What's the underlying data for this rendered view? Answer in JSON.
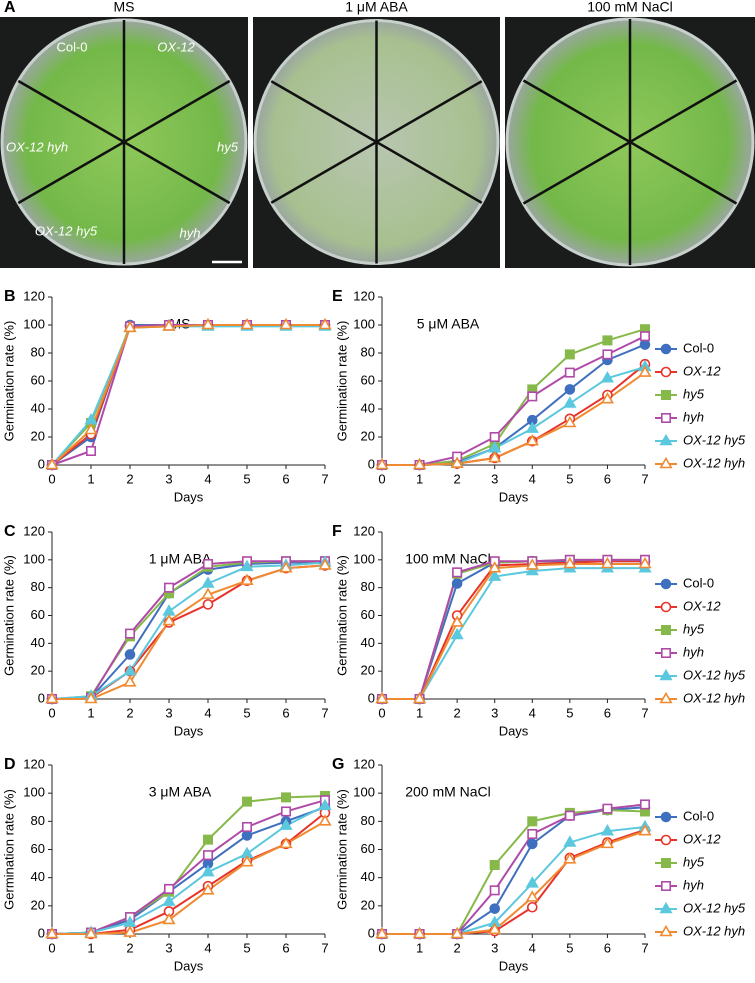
{
  "photo_panel": {
    "panel": "A",
    "titles": [
      "MS",
      "1 μM ABA",
      "100 mM NaCl"
    ],
    "labels": [
      "Col-0",
      "OX-12",
      "hy5",
      "hyh",
      "OX-12 hy5",
      "OX-12 hyh"
    ]
  },
  "chart_data": [
    {
      "type": "line",
      "panel": "B",
      "title": "MS",
      "xlabel": "Days",
      "ylabel": "Germination rate (%)",
      "legend": false,
      "x": [
        0,
        1,
        2,
        3,
        4,
        5,
        6,
        7
      ],
      "xlim": [
        0,
        7
      ],
      "xticks": [
        0,
        1,
        2,
        3,
        4,
        5,
        6,
        7
      ],
      "ylim": [
        0,
        120
      ],
      "yticks": [
        0,
        20,
        40,
        60,
        80,
        100,
        120
      ],
      "series": [
        {
          "name": "Col-0",
          "color": "#3f6fbf",
          "marker": "circle",
          "filled": true,
          "italic": false,
          "values": [
            0,
            20,
            100,
            100,
            100,
            100,
            100,
            100
          ]
        },
        {
          "name": "OX-12",
          "color": "#e8332a",
          "marker": "circle",
          "filled": false,
          "italic": true,
          "values": [
            0,
            22,
            99,
            100,
            100,
            100,
            100,
            100
          ]
        },
        {
          "name": "hy5",
          "color": "#86b84a",
          "marker": "square",
          "filled": true,
          "italic": true,
          "values": [
            0,
            30,
            99,
            100,
            100,
            100,
            100,
            100
          ]
        },
        {
          "name": "hyh",
          "color": "#b04aa8",
          "marker": "square",
          "filled": false,
          "italic": true,
          "values": [
            0,
            10,
            99,
            100,
            100,
            100,
            100,
            100
          ]
        },
        {
          "name": "OX-12 hy5",
          "color": "#5bc8de",
          "marker": "triangle",
          "filled": true,
          "italic": true,
          "values": [
            0,
            32,
            98,
            99,
            99,
            99,
            99,
            99
          ]
        },
        {
          "name": "OX-12 hyh",
          "color": "#f08a30",
          "marker": "triangle",
          "filled": false,
          "italic": true,
          "values": [
            0,
            25,
            98,
            99,
            100,
            100,
            100,
            100
          ]
        }
      ]
    },
    {
      "type": "line",
      "panel": "C",
      "title": "1 μM ABA",
      "xlabel": "Days",
      "ylabel": "Germination rate (%)",
      "legend": false,
      "x": [
        0,
        1,
        2,
        3,
        4,
        5,
        6,
        7
      ],
      "xlim": [
        0,
        7
      ],
      "xticks": [
        0,
        1,
        2,
        3,
        4,
        5,
        6,
        7
      ],
      "ylim": [
        0,
        120
      ],
      "yticks": [
        0,
        20,
        40,
        60,
        80,
        100,
        120
      ],
      "series": [
        {
          "name": "Col-0",
          "color": "#3f6fbf",
          "marker": "circle",
          "filled": true,
          "italic": false,
          "values": [
            0,
            1,
            32,
            76,
            93,
            97,
            98,
            98
          ]
        },
        {
          "name": "OX-12",
          "color": "#e8332a",
          "marker": "circle",
          "filled": false,
          "italic": true,
          "values": [
            0,
            1,
            20,
            55,
            68,
            85,
            94,
            96
          ]
        },
        {
          "name": "hy5",
          "color": "#86b84a",
          "marker": "square",
          "filled": true,
          "italic": true,
          "values": [
            0,
            2,
            45,
            76,
            95,
            98,
            99,
            99
          ]
        },
        {
          "name": "hyh",
          "color": "#b04aa8",
          "marker": "square",
          "filled": false,
          "italic": true,
          "values": [
            0,
            1,
            47,
            80,
            97,
            99,
            99,
            99
          ]
        },
        {
          "name": "OX-12 hy5",
          "color": "#5bc8de",
          "marker": "triangle",
          "filled": true,
          "italic": true,
          "values": [
            0,
            2,
            20,
            63,
            83,
            95,
            96,
            98
          ]
        },
        {
          "name": "OX-12 hyh",
          "color": "#f08a30",
          "marker": "triangle",
          "filled": false,
          "italic": true,
          "values": [
            0,
            0,
            12,
            56,
            75,
            85,
            94,
            96
          ]
        }
      ]
    },
    {
      "type": "line",
      "panel": "D",
      "title": "3 μM ABA",
      "xlabel": "Days",
      "ylabel": "Germination rate (%)",
      "legend": false,
      "x": [
        0,
        1,
        2,
        3,
        4,
        5,
        6,
        7
      ],
      "xlim": [
        0,
        7
      ],
      "xticks": [
        0,
        1,
        2,
        3,
        4,
        5,
        6,
        7
      ],
      "ylim": [
        0,
        120
      ],
      "yticks": [
        0,
        20,
        40,
        60,
        80,
        100,
        120
      ],
      "series": [
        {
          "name": "Col-0",
          "color": "#3f6fbf",
          "marker": "circle",
          "filled": true,
          "italic": false,
          "values": [
            0,
            1,
            10,
            30,
            50,
            70,
            80,
            90
          ]
        },
        {
          "name": "OX-12",
          "color": "#e8332a",
          "marker": "circle",
          "filled": false,
          "italic": true,
          "values": [
            0,
            0,
            3,
            16,
            34,
            52,
            64,
            86
          ]
        },
        {
          "name": "hy5",
          "color": "#86b84a",
          "marker": "square",
          "filled": true,
          "italic": true,
          "values": [
            0,
            1,
            12,
            30,
            67,
            94,
            97,
            98
          ]
        },
        {
          "name": "hyh",
          "color": "#b04aa8",
          "marker": "square",
          "filled": false,
          "italic": true,
          "values": [
            0,
            1,
            12,
            32,
            56,
            76,
            87,
            95
          ]
        },
        {
          "name": "OX-12 hy5",
          "color": "#5bc8de",
          "marker": "triangle",
          "filled": true,
          "italic": true,
          "values": [
            0,
            1,
            8,
            23,
            44,
            57,
            77,
            91
          ]
        },
        {
          "name": "OX-12 hyh",
          "color": "#f08a30",
          "marker": "triangle",
          "filled": false,
          "italic": true,
          "values": [
            0,
            0,
            1,
            10,
            31,
            51,
            64,
            80
          ]
        }
      ]
    },
    {
      "type": "line",
      "panel": "E",
      "title": "5 μM ABA",
      "xlabel": "Days",
      "ylabel": "Germination rate (%)",
      "legend": true,
      "x": [
        0,
        1,
        2,
        3,
        4,
        5,
        6,
        7
      ],
      "xlim": [
        0,
        7
      ],
      "xticks": [
        0,
        1,
        2,
        3,
        4,
        5,
        6,
        7
      ],
      "ylim": [
        0,
        120
      ],
      "yticks": [
        0,
        20,
        40,
        60,
        80,
        100,
        120
      ],
      "series": [
        {
          "name": "Col-0",
          "color": "#3f6fbf",
          "marker": "circle",
          "filled": true,
          "italic": false,
          "values": [
            0,
            0,
            2,
            12,
            32,
            54,
            75,
            86
          ]
        },
        {
          "name": "OX-12",
          "color": "#e8332a",
          "marker": "circle",
          "filled": false,
          "italic": true,
          "values": [
            0,
            0,
            1,
            5,
            17,
            33,
            50,
            72
          ]
        },
        {
          "name": "hy5",
          "color": "#86b84a",
          "marker": "square",
          "filled": true,
          "italic": true,
          "values": [
            0,
            0,
            3,
            15,
            54,
            79,
            89,
            97
          ]
        },
        {
          "name": "hyh",
          "color": "#b04aa8",
          "marker": "square",
          "filled": false,
          "italic": true,
          "values": [
            0,
            0,
            6,
            20,
            49,
            66,
            79,
            92
          ]
        },
        {
          "name": "OX-12 hy5",
          "color": "#5bc8de",
          "marker": "triangle",
          "filled": true,
          "italic": true,
          "values": [
            0,
            0,
            1,
            12,
            26,
            44,
            62,
            70
          ]
        },
        {
          "name": "OX-12 hyh",
          "color": "#f08a30",
          "marker": "triangle",
          "filled": false,
          "italic": true,
          "values": [
            0,
            0,
            1,
            5,
            17,
            30,
            47,
            66
          ]
        }
      ]
    },
    {
      "type": "line",
      "panel": "F",
      "title": "100 mM NaCl",
      "xlabel": "Days",
      "ylabel": "Germination rate (%)",
      "legend": true,
      "x": [
        0,
        1,
        2,
        3,
        4,
        5,
        6,
        7
      ],
      "xlim": [
        0,
        7
      ],
      "xticks": [
        0,
        1,
        2,
        3,
        4,
        5,
        6,
        7
      ],
      "ylim": [
        0,
        120
      ],
      "yticks": [
        0,
        20,
        40,
        60,
        80,
        100,
        120
      ],
      "series": [
        {
          "name": "Col-0",
          "color": "#3f6fbf",
          "marker": "circle",
          "filled": true,
          "italic": false,
          "values": [
            0,
            0,
            83,
            98,
            99,
            99,
            99,
            99
          ]
        },
        {
          "name": "OX-12",
          "color": "#e8332a",
          "marker": "circle",
          "filled": false,
          "italic": true,
          "values": [
            0,
            0,
            60,
            96,
            97,
            98,
            99,
            99
          ]
        },
        {
          "name": "hy5",
          "color": "#86b84a",
          "marker": "square",
          "filled": true,
          "italic": true,
          "values": [
            0,
            0,
            90,
            98,
            99,
            100,
            100,
            100
          ]
        },
        {
          "name": "hyh",
          "color": "#b04aa8",
          "marker": "square",
          "filled": false,
          "italic": true,
          "values": [
            0,
            0,
            91,
            99,
            99,
            100,
            100,
            100
          ]
        },
        {
          "name": "OX-12 hy5",
          "color": "#5bc8de",
          "marker": "triangle",
          "filled": true,
          "italic": true,
          "values": [
            0,
            0,
            46,
            88,
            92,
            94,
            94,
            94
          ]
        },
        {
          "name": "OX-12 hyh",
          "color": "#f08a30",
          "marker": "triangle",
          "filled": false,
          "italic": true,
          "values": [
            0,
            0,
            55,
            94,
            96,
            97,
            97,
            97
          ]
        }
      ]
    },
    {
      "type": "line",
      "panel": "G",
      "title": "200 mM NaCl",
      "xlabel": "Days",
      "ylabel": "Germination rate (%)",
      "legend": true,
      "x": [
        0,
        1,
        2,
        3,
        4,
        5,
        6,
        7
      ],
      "xlim": [
        0,
        7
      ],
      "xticks": [
        0,
        1,
        2,
        3,
        4,
        5,
        6,
        7
      ],
      "ylim": [
        0,
        120
      ],
      "yticks": [
        0,
        20,
        40,
        60,
        80,
        100,
        120
      ],
      "series": [
        {
          "name": "Col-0",
          "color": "#3f6fbf",
          "marker": "circle",
          "filled": true,
          "italic": false,
          "values": [
            0,
            0,
            0,
            18,
            64,
            84,
            88,
            90
          ]
        },
        {
          "name": "OX-12",
          "color": "#e8332a",
          "marker": "circle",
          "filled": false,
          "italic": true,
          "values": [
            0,
            0,
            0,
            2,
            19,
            54,
            65,
            74
          ]
        },
        {
          "name": "hy5",
          "color": "#86b84a",
          "marker": "square",
          "filled": true,
          "italic": true,
          "values": [
            0,
            0,
            0,
            49,
            80,
            86,
            88,
            87
          ]
        },
        {
          "name": "hyh",
          "color": "#b04aa8",
          "marker": "square",
          "filled": false,
          "italic": true,
          "values": [
            0,
            0,
            0,
            31,
            71,
            84,
            89,
            92
          ]
        },
        {
          "name": "OX-12 hy5",
          "color": "#5bc8de",
          "marker": "triangle",
          "filled": true,
          "italic": true,
          "values": [
            0,
            0,
            0,
            8,
            36,
            65,
            73,
            76
          ]
        },
        {
          "name": "OX-12 hyh",
          "color": "#f08a30",
          "marker": "triangle",
          "filled": false,
          "italic": true,
          "values": [
            0,
            0,
            0,
            3,
            26,
            53,
            64,
            73
          ]
        }
      ]
    }
  ]
}
